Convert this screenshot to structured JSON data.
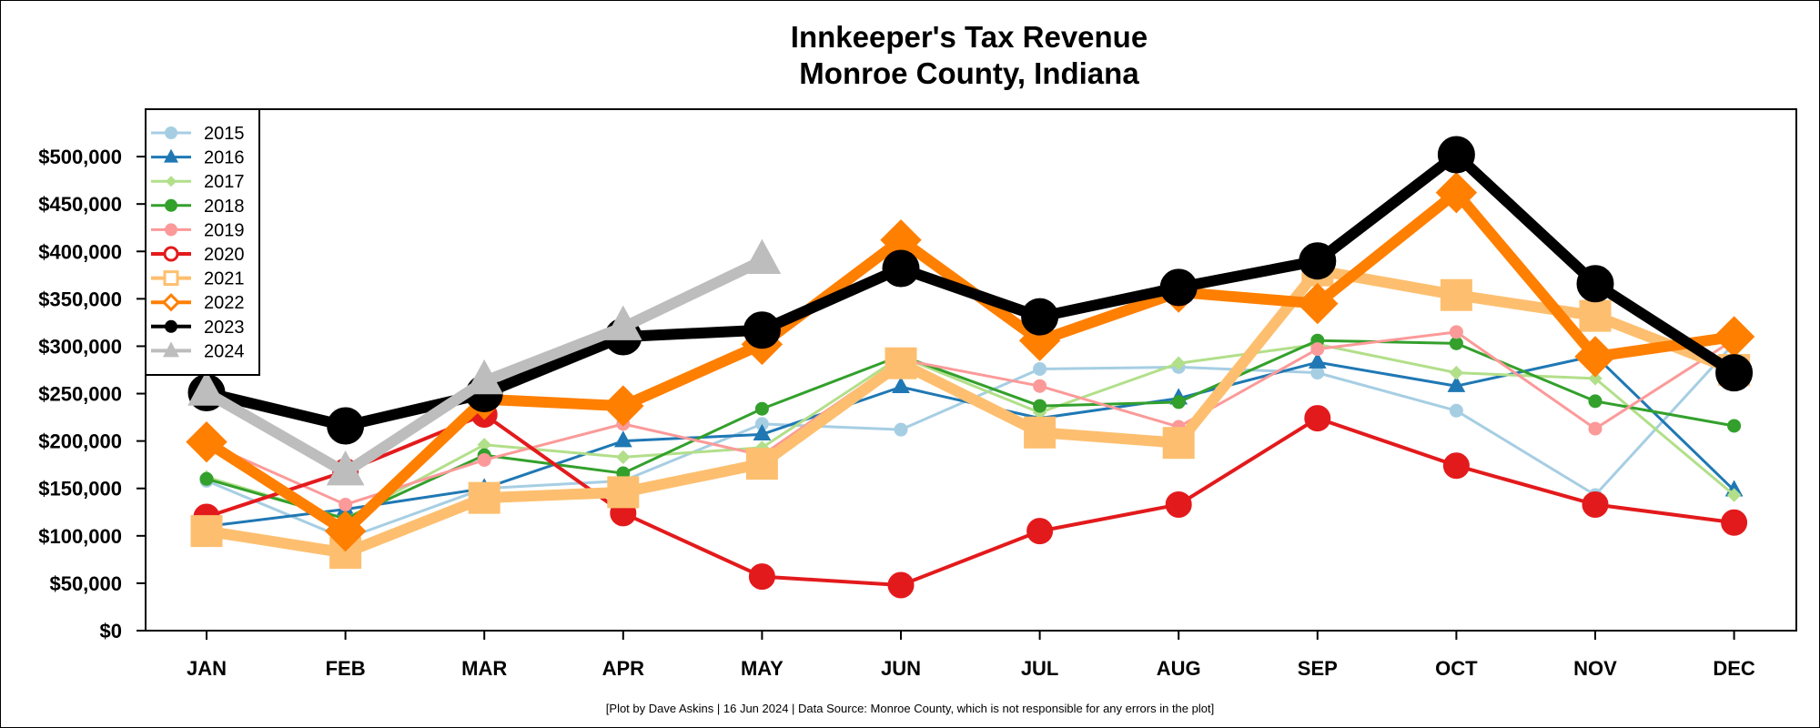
{
  "chart_data": {
    "type": "line",
    "title": "Innkeeper's Tax Revenue",
    "subtitle": "Monroe County, Indiana",
    "xlabel": "",
    "ylabel": "",
    "ylim": [
      0,
      550000
    ],
    "categories": [
      "JAN",
      "FEB",
      "MAR",
      "APR",
      "MAY",
      "JUN",
      "JUL",
      "AUG",
      "SEP",
      "OCT",
      "NOV",
      "DEC"
    ],
    "y_ticks": [
      0,
      50000,
      100000,
      150000,
      200000,
      250000,
      300000,
      350000,
      400000,
      450000,
      500000
    ],
    "y_tick_labels": [
      "$0",
      "$50,000",
      "$100,000",
      "$150,000",
      "$200,000",
      "$250,000",
      "$300,000",
      "$350,000",
      "$400,000",
      "$450,000",
      "$500,000"
    ],
    "legend_position": "top-left",
    "grid": false,
    "series": [
      {
        "name": "2015",
        "color": "#a6cee3",
        "marker": "circle",
        "weight": "thin",
        "values": [
          158000,
          97000,
          150000,
          158000,
          218000,
          212000,
          276000,
          278000,
          272000,
          232000,
          143000,
          303000
        ]
      },
      {
        "name": "2016",
        "color": "#1f78b4",
        "marker": "triangle",
        "weight": "thin",
        "values": [
          110000,
          128000,
          150000,
          200000,
          207000,
          257000,
          224000,
          245000,
          283000,
          258000,
          290000,
          148000
        ]
      },
      {
        "name": "2017",
        "color": "#b2df8a",
        "marker": "diamond",
        "weight": "thin",
        "values": [
          162000,
          118000,
          196000,
          183000,
          193000,
          289000,
          230000,
          282000,
          302000,
          272000,
          266000,
          143000
        ]
      },
      {
        "name": "2018",
        "color": "#33a02c",
        "marker": "circle",
        "weight": "thin",
        "values": [
          160000,
          118000,
          185000,
          166000,
          234000,
          290000,
          237000,
          241000,
          306000,
          303000,
          242000,
          216000
        ]
      },
      {
        "name": "2019",
        "color": "#fb9a99",
        "marker": "circle",
        "weight": "thin",
        "values": [
          198000,
          133000,
          180000,
          218000,
          185000,
          286000,
          258000,
          215000,
          297000,
          315000,
          213000,
          307000
        ]
      },
      {
        "name": "2020",
        "color": "#e31a1c",
        "marker": "circle-large",
        "weight": "medium",
        "values": [
          120000,
          168000,
          228000,
          124000,
          57000,
          48000,
          105000,
          133000,
          224000,
          174000,
          133000,
          114000
        ]
      },
      {
        "name": "2021",
        "color": "#fdbf6f",
        "marker": "square",
        "weight": "thick",
        "values": [
          105000,
          82000,
          140000,
          146000,
          176000,
          282000,
          209000,
          198000,
          380000,
          354000,
          332000,
          275000
        ]
      },
      {
        "name": "2022",
        "color": "#ff7f00",
        "marker": "diamond-large",
        "weight": "thick",
        "values": [
          199000,
          105000,
          244000,
          237000,
          302000,
          412000,
          306000,
          357000,
          345000,
          462000,
          289000,
          310000
        ]
      },
      {
        "name": "2023",
        "color": "#000000",
        "marker": "circle-xlarge",
        "weight": "thick",
        "values": [
          251000,
          216000,
          250000,
          310000,
          317000,
          382000,
          331000,
          362000,
          390000,
          502000,
          366000,
          272000
        ]
      },
      {
        "name": "2024",
        "color": "#bdbdbd",
        "marker": "triangle-large",
        "weight": "thick",
        "values": [
          251000,
          167000,
          263000,
          320000,
          390000,
          null,
          null,
          null,
          null,
          null,
          null,
          null
        ]
      }
    ],
    "footer": "[Plot by Dave Askins | 16 Jun 2024 | Data Source: Monroe County, which is not responsible for any errors in the plot]"
  }
}
